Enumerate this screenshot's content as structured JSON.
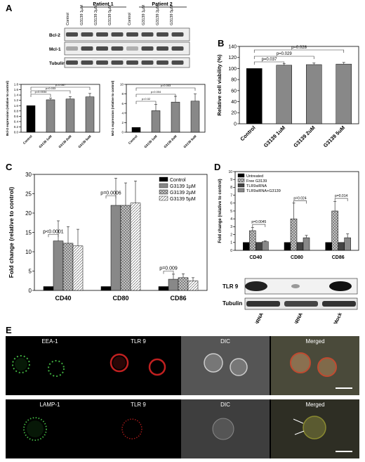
{
  "panels": {
    "A": "A",
    "B": "B",
    "C": "C",
    "D": "D",
    "E": "E"
  },
  "blotA": {
    "groups": [
      "Patient 1",
      "Patient 2"
    ],
    "lanes": [
      "Control",
      "G3139 1µM",
      "G3139 2µM",
      "G3139 5µM",
      "Control",
      "G3139 1µM",
      "G3139 2µM",
      "G3139 5µM"
    ],
    "rows": [
      "Bcl-2",
      "Mcl-1",
      "Tubulin"
    ]
  },
  "chart_data": [
    {
      "id": "A-bcl2",
      "type": "bar",
      "categories": [
        "Control",
        "G3139 1uM",
        "G3139 2uM",
        "G3139 5uM"
      ],
      "values": [
        1.0,
        1.22,
        1.25,
        1.33
      ],
      "errors": [
        0,
        0.06,
        0.09,
        0.13
      ],
      "ylabel": "Bcl-2 expression (relative to control)",
      "ylim": [
        0,
        1.8
      ],
      "yticks": [
        "0.0",
        "0.2",
        "0.4",
        "0.6",
        "0.8",
        "1.0",
        "1.2",
        "1.4",
        "1.6",
        "1.8"
      ],
      "pvalues": [
        "p=0.0034",
        "p=0.033",
        "p=0.087"
      ]
    },
    {
      "id": "A-mcl1",
      "type": "bar",
      "categories": [
        "Control",
        "G3139 1uM",
        "G3139 2uM",
        "G3139 5uM"
      ],
      "values": [
        1.0,
        4.5,
        6.3,
        6.5
      ],
      "errors": [
        0,
        1.3,
        1.2,
        1.5
      ],
      "ylabel": "Mcl-1 expression (relative to control)",
      "ylim": [
        0,
        10
      ],
      "yticks": [
        "0",
        "2",
        "4",
        "6",
        "8",
        "10"
      ],
      "pvalues": [
        "p=0.02",
        "p=0.004",
        "p=0.003"
      ]
    },
    {
      "id": "B",
      "type": "bar",
      "categories": [
        "Control",
        "G3139 1uM",
        "G3139 2uM",
        "G3139 5uM"
      ],
      "values": [
        100,
        106,
        107,
        108
      ],
      "errors": [
        0,
        3,
        3,
        3
      ],
      "ylabel": "Relative cell viability (%)",
      "ylim": [
        0,
        140
      ],
      "yticks": [
        "0",
        "20",
        "40",
        "60",
        "80",
        "100",
        "120",
        "140"
      ],
      "pvalues": [
        "p=0.037",
        "p=0.029",
        "p=0.028"
      ]
    },
    {
      "id": "C",
      "type": "bar",
      "categories": [
        "CD40",
        "CD80",
        "CD86"
      ],
      "series": [
        {
          "name": "Control",
          "values": [
            1,
            1,
            1
          ],
          "errors": [
            0,
            0,
            0
          ]
        },
        {
          "name": "G3139 1µM",
          "values": [
            12.8,
            22,
            2.9
          ],
          "errors": [
            5.2,
            7,
            1.3
          ]
        },
        {
          "name": "G3139 2µM",
          "values": [
            12.2,
            22,
            3.3
          ],
          "errors": [
            4.3,
            5.8,
            1.0
          ]
        },
        {
          "name": "G3139 5µM",
          "values": [
            11.5,
            22.6,
            2.5
          ],
          "errors": [
            4.3,
            5.7,
            0.8
          ]
        }
      ],
      "ylabel": "Fold change (relative to control)",
      "ylim": [
        0,
        30
      ],
      "yticks": [
        "0",
        "5",
        "10",
        "15",
        "20",
        "25",
        "30"
      ],
      "pvalues": [
        "p<0.0001",
        "p=0.0006",
        "p=0.009"
      ]
    },
    {
      "id": "D",
      "type": "bar",
      "categories": [
        "CD40",
        "CD80",
        "CD86"
      ],
      "series": [
        {
          "name": "Untreated",
          "values": [
            1,
            1,
            1
          ],
          "errors": [
            0,
            0,
            0
          ]
        },
        {
          "name": "Free G3139",
          "values": [
            2.5,
            4.0,
            5.0
          ],
          "errors": [
            0.4,
            2.0,
            1.2
          ]
        },
        {
          "name": "TLR9siRNA",
          "values": [
            1,
            1,
            1
          ],
          "errors": [
            0,
            0,
            0
          ]
        },
        {
          "name": "TLR9siRNA+G3139",
          "values": [
            1.1,
            1.6,
            1.6
          ],
          "errors": [
            0.1,
            0.3,
            0.5
          ]
        }
      ],
      "ylabel": "Fold change (relative to control)",
      "ylim": [
        0,
        10
      ],
      "yticks": [
        "0",
        "1",
        "2",
        "3",
        "4",
        "5",
        "6",
        "7",
        "8",
        "9",
        "10"
      ],
      "pvalues": [
        "p=0.0045",
        "p=0.024",
        "p=0.014"
      ]
    }
  ],
  "blotD": {
    "rows": [
      "TLR 9",
      "Tubulin"
    ],
    "lanes": [
      "Control siRNA",
      "TLR 9 siRNA",
      "Mock"
    ]
  },
  "microscopy": {
    "row1": [
      "EEA-1",
      "TLR 9",
      "DIC",
      "Merged"
    ],
    "row2": [
      "LAMP-1",
      "TLR 9",
      "DIC",
      "Merged"
    ]
  },
  "colors": {
    "black": "#000000",
    "gray": "#888888",
    "darkgray": "#555555",
    "green": "#4dd04d",
    "red": "#d02020"
  }
}
